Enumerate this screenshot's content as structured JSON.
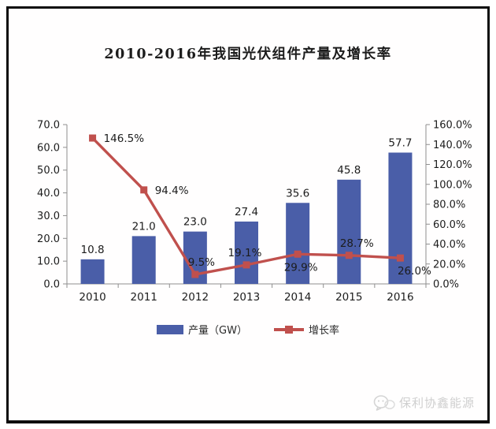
{
  "title": "2010-2016年我国光伏组件产量及增长率",
  "watermark": {
    "text": "保利协鑫能源",
    "icon": "wechat-logo-icon"
  },
  "colors": {
    "bar": "#4A5EA8",
    "line": "#C0504D",
    "axis": "#8f8f8f",
    "label_text": "#1c1c1c"
  },
  "chart_data": {
    "type": "bar+line",
    "title": "2010-2016年我国光伏组件产量及增长率",
    "categories": [
      "2010",
      "2011",
      "2012",
      "2013",
      "2014",
      "2015",
      "2016"
    ],
    "series": [
      {
        "name": "产量（GW）",
        "type": "bar",
        "axis": "left",
        "color": "#4A5EA8",
        "values": [
          10.8,
          21.0,
          23.0,
          27.4,
          35.6,
          45.8,
          57.7
        ],
        "labels": [
          "10.8",
          "21.0",
          "23.0",
          "27.4",
          "35.6",
          "45.8",
          "57.7"
        ]
      },
      {
        "name": "增长率",
        "type": "line",
        "axis": "right",
        "color": "#C0504D",
        "marker": "square",
        "values": [
          146.5,
          94.4,
          9.5,
          19.1,
          29.9,
          28.7,
          26.0
        ],
        "labels": [
          "146.5%",
          "94.4%",
          "9.5%",
          "19.1%",
          "29.9%",
          "28.7%",
          "26.0%"
        ],
        "label_anchors": [
          "start",
          "start",
          "middle",
          "middle",
          "middle",
          "middle",
          "middle"
        ],
        "label_offsets": [
          [
            14,
            5
          ],
          [
            14,
            5
          ],
          [
            8,
            -11
          ],
          [
            -2,
            -11
          ],
          [
            4,
            21
          ],
          [
            10,
            -11
          ],
          [
            18,
            21
          ]
        ]
      }
    ],
    "left_axis": {
      "min": 0,
      "max": 70,
      "step": 10,
      "tick_labels": [
        "0.0",
        "10.0",
        "20.0",
        "30.0",
        "40.0",
        "50.0",
        "60.0",
        "70.0"
      ]
    },
    "right_axis": {
      "min": 0,
      "max": 160,
      "step": 20,
      "tick_labels": [
        "0.0%",
        "20.0%",
        "40.0%",
        "60.0%",
        "80.0%",
        "100.0%",
        "120.0%",
        "140.0%",
        "160.0%"
      ]
    },
    "grid": false,
    "legend_position": "bottom"
  }
}
